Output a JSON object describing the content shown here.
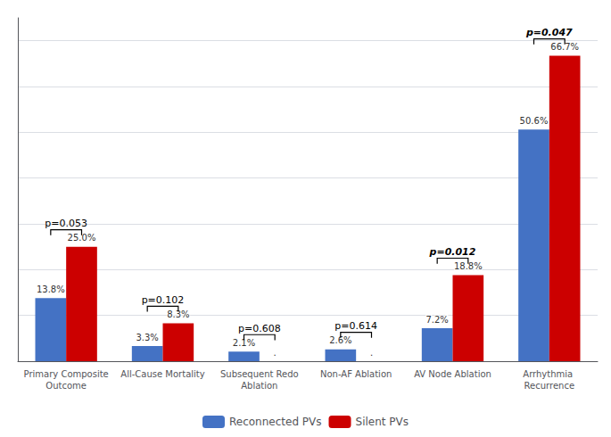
{
  "chart_data": {
    "type": "bar",
    "categories": [
      "Primary Composite\nOutcome",
      "All-Cause Mortality",
      "Subsequent Redo\nAblation",
      "Non-AF Ablation",
      "AV Node Ablation",
      "Arrhythmia Recurrence"
    ],
    "series": [
      {
        "name": "Reconnected PVs",
        "color": "#4472C4",
        "values": [
          13.8,
          3.3,
          2.1,
          2.6,
          7.2,
          50.6
        ],
        "value_labels": [
          "13.8%",
          "3.3%",
          "2.1%",
          "2.6%",
          "7.2%",
          "50.6%"
        ]
      },
      {
        "name": "Silent PVs",
        "color": "#CC0000",
        "values": [
          25.0,
          8.3,
          0,
          0,
          18.8,
          66.7
        ],
        "value_labels": [
          "25.0%",
          "8.3%",
          ".",
          ".",
          "18.8%",
          "66.7%"
        ]
      }
    ],
    "annotations": [
      {
        "category": "Primary Composite\nOutcome",
        "text": "p=0.053",
        "font_style": "normal"
      },
      {
        "category": "All-Cause Mortality",
        "text": "p=0.102",
        "font_style": "normal"
      },
      {
        "category": "Subsequent Redo\nAblation",
        "text": "p=0.608",
        "font_style": "normal"
      },
      {
        "category": "Non-AF Ablation",
        "text": "p=0.614",
        "font_style": "normal"
      },
      {
        "category": "AV Node Ablation",
        "text": "p=0.012",
        "font_style": "bold italic"
      },
      {
        "category": "Arrhythmia Recurrence",
        "text": "p=0.047",
        "font_style": "bold italic"
      }
    ],
    "ylim": [
      0,
      75
    ],
    "yticks": [
      0,
      10,
      20,
      30,
      40,
      50,
      60,
      70
    ],
    "grid": true,
    "legend": "bottom",
    "data_labels": true,
    "tick_labels": "x"
  }
}
